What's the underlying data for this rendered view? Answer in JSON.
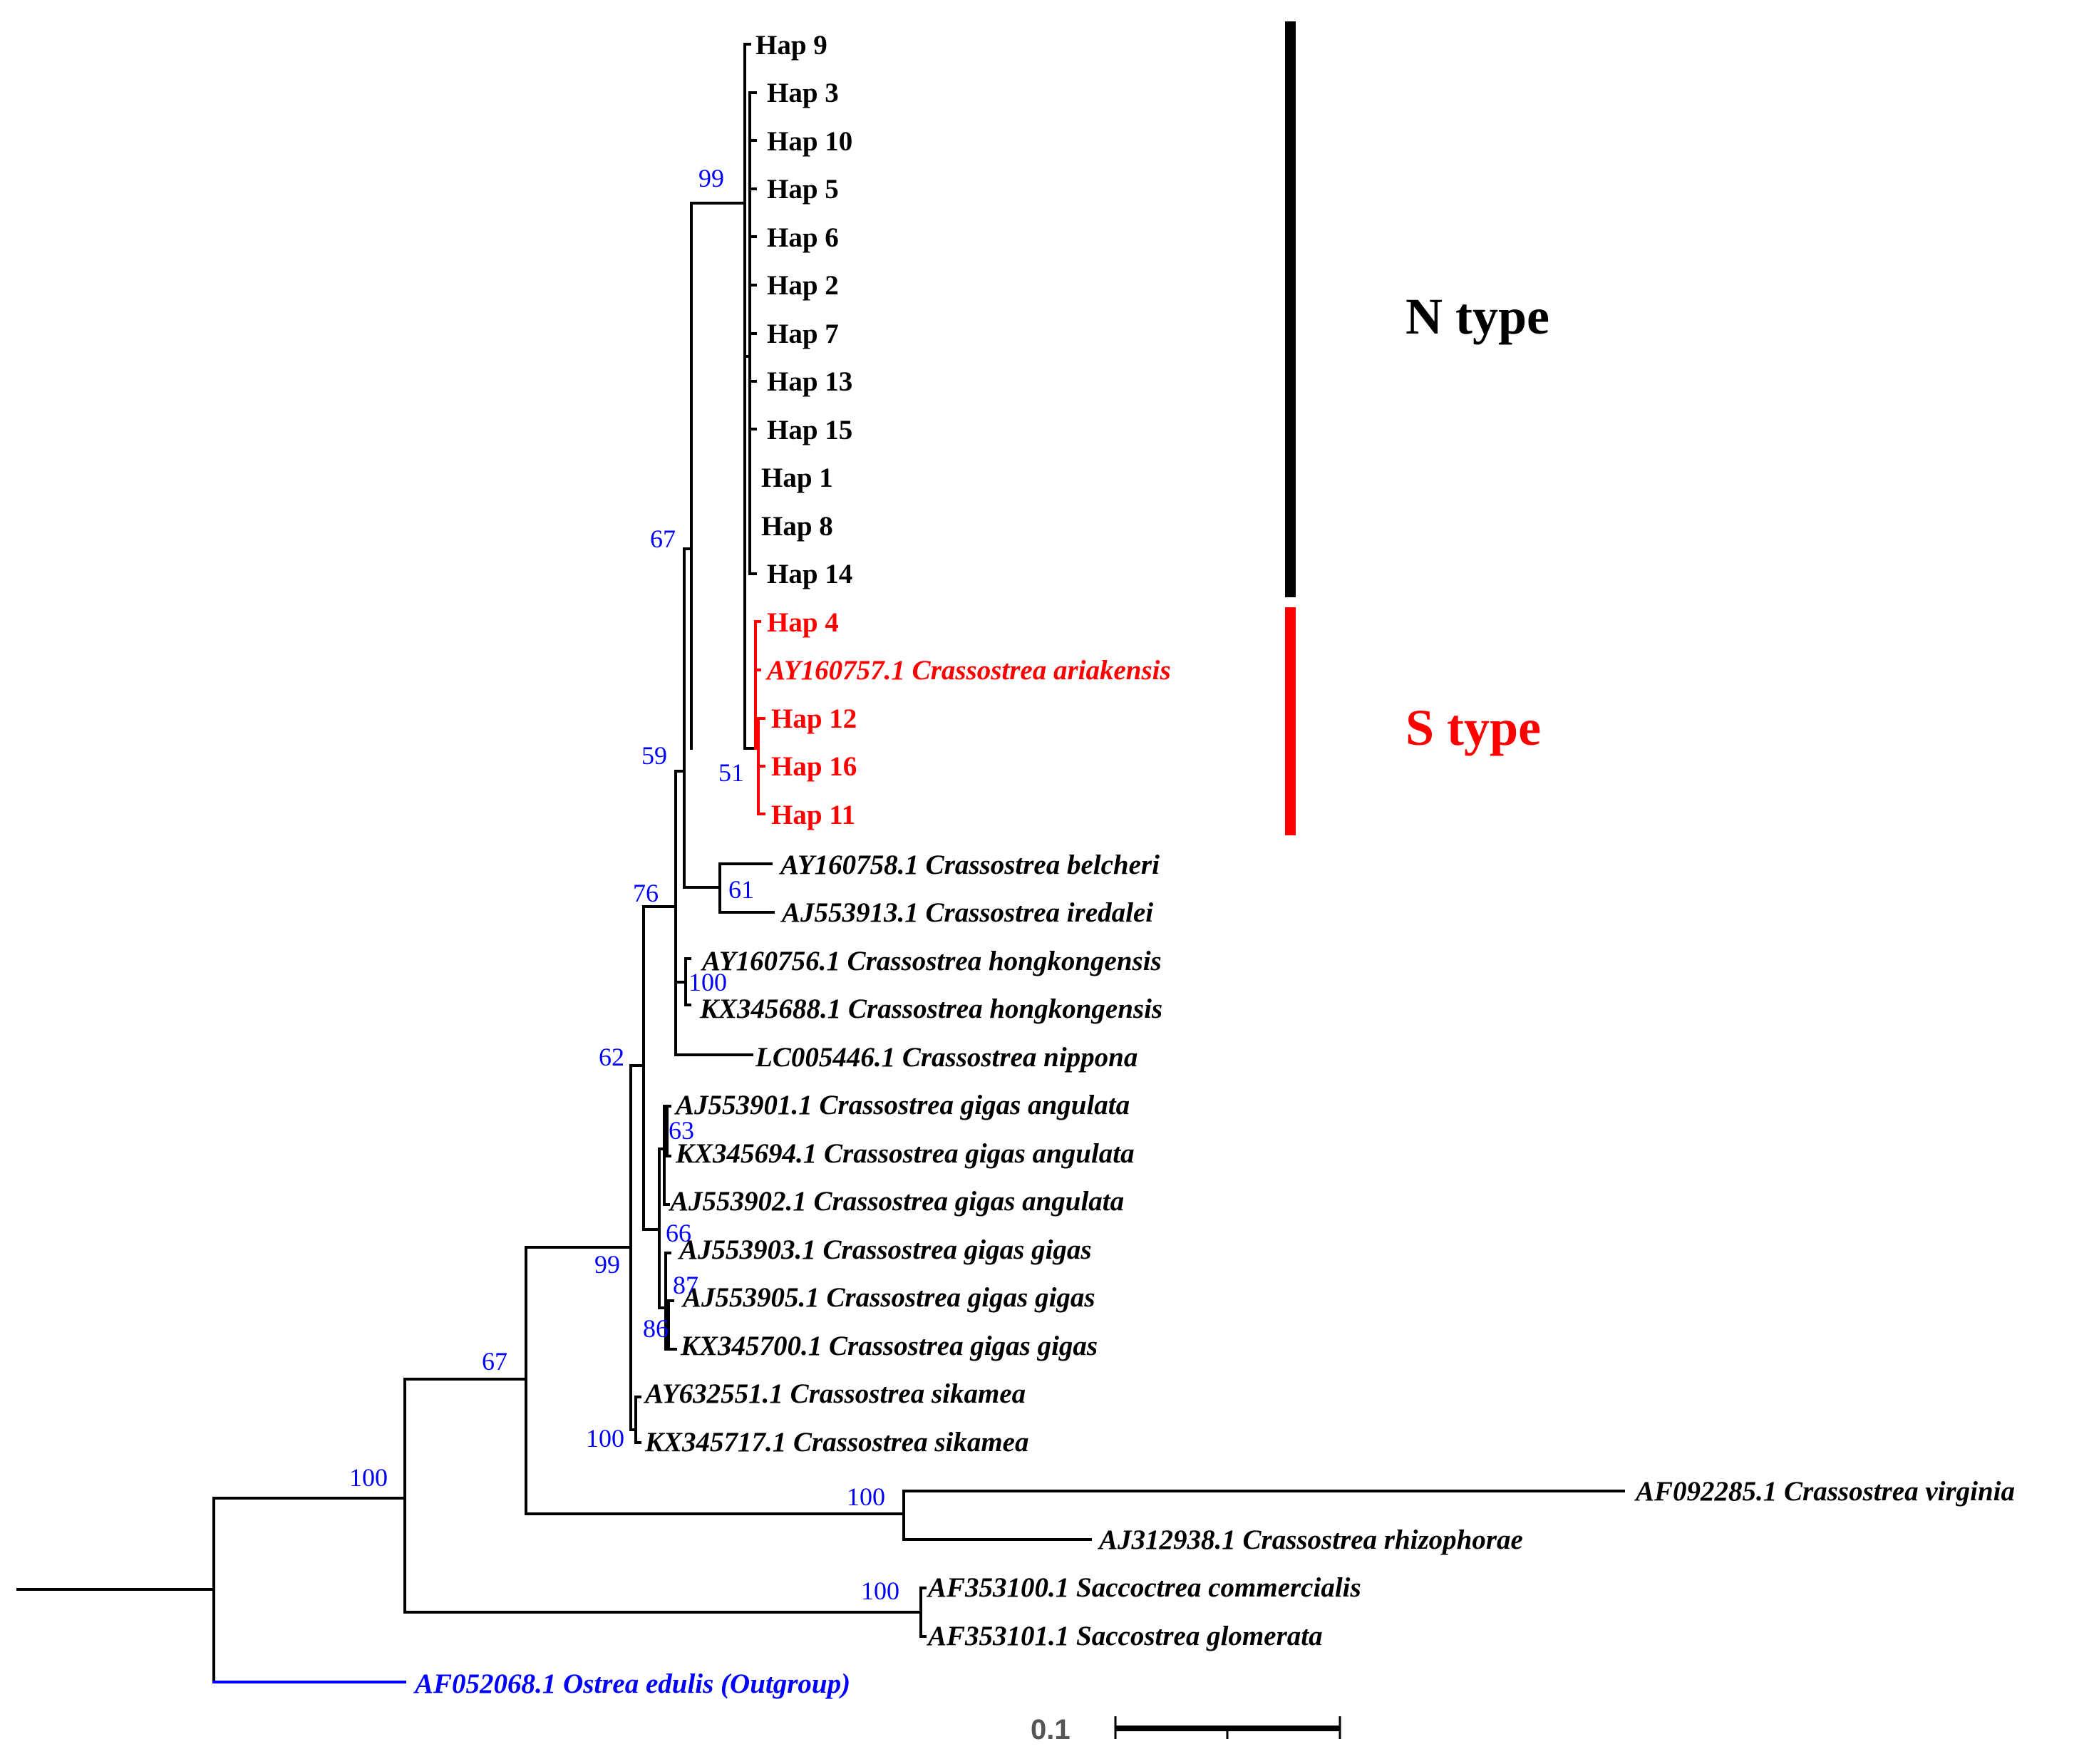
{
  "colors": {
    "branch": "#000000",
    "s_type": "#ff0000",
    "outgroup": "#0000ff",
    "support": "#0000ff"
  },
  "groups": {
    "n_type": "N type",
    "s_type": "S type"
  },
  "scale": {
    "value": 0.1,
    "label": "0.1"
  },
  "taxa": {
    "hap9": "Hap 9",
    "hap3": "Hap 3",
    "hap10": "Hap 10",
    "hap5": "Hap 5",
    "hap6": "Hap 6",
    "hap2": "Hap 2",
    "hap7": "Hap 7",
    "hap13": "Hap 13",
    "hap15": "Hap 15",
    "hap1": "Hap 1",
    "hap8": "Hap 8",
    "hap14": "Hap 14",
    "hap4": "Hap 4",
    "ay160757": "AY160757.1 Crassostrea ariakensis",
    "hap12": "Hap 12",
    "hap16": "Hap 16",
    "hap11": "Hap 11",
    "ay160758": "AY160758.1 Crassostrea belcheri",
    "aj553913": "AJ553913.1 Crassostrea iredalei",
    "ay160756": "AY160756.1 Crassostrea hongkongensis",
    "kx345688": "KX345688.1 Crassostrea hongkongensis",
    "lc005446": "LC005446.1 Crassostrea nippona",
    "aj553901": "AJ553901.1 Crassostrea gigas angulata",
    "kx345694": "KX345694.1 Crassostrea gigas angulata",
    "aj553902": "AJ553902.1 Crassostrea gigas angulata",
    "aj553903": "AJ553903.1 Crassostrea gigas gigas",
    "aj553905": "AJ553905.1 Crassostrea gigas gigas",
    "kx345700": "KX345700.1 Crassostrea gigas gigas",
    "ay632551": "AY632551.1 Crassostrea sikamea",
    "kx345717": "KX345717.1 Crassostrea sikamea",
    "af092285": "AF092285.1 Crassostrea virginia",
    "aj312938": "AJ312938.1 Crassostrea rhizophorae",
    "af353100": "AF353100.1 Saccoctrea commercialis",
    "af353101": "AF353101.1 Saccostrea glomerata",
    "af052068": "AF052068.1 Ostrea edulis (Outgroup)"
  },
  "support": {
    "s99_top": "99",
    "s67_mid": "67",
    "s59": "59",
    "s51": "51",
    "s61": "61",
    "s76": "76",
    "s100_hk": "100",
    "s62": "62",
    "s63": "63",
    "s66": "66",
    "s87": "87",
    "s86": "86",
    "s99_low": "99",
    "s100_sik": "100",
    "s67_low": "67",
    "s100_root": "100",
    "s100_virg": "100",
    "s100_sacc": "100"
  }
}
